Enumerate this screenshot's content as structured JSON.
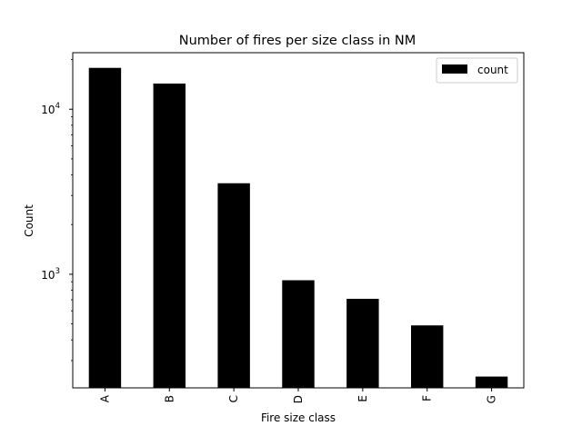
{
  "chart_data": {
    "type": "bar",
    "title": "Number of fires per size class in NM",
    "xlabel": "Fire size class",
    "ylabel": "Count",
    "yscale": "log",
    "ylim": [
      205,
      22000
    ],
    "yticks": [
      1000,
      10000
    ],
    "categories": [
      "A",
      "B",
      "C",
      "D",
      "E",
      "F",
      "G"
    ],
    "series": [
      {
        "name": "count",
        "values": [
          17800,
          14300,
          3560,
          920,
          710,
          490,
          240
        ],
        "color": "#000000"
      }
    ],
    "legend": {
      "position": "top-right"
    },
    "grid": false
  }
}
